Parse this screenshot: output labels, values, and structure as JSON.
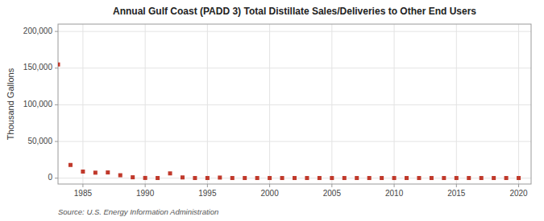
{
  "chart_data": {
    "type": "scatter",
    "title": "Annual Gulf Coast (PADD 3) Total Distillate Sales/Deliveries to Other End Users",
    "y_label": "Thousand Gallons",
    "source": "Source: U.S. Energy Information Administration",
    "color": "#c0392b",
    "marker": "square",
    "grid": true,
    "xlim": [
      1983,
      2021
    ],
    "ylim": [
      -8000,
      210000
    ],
    "xticks": [
      1985,
      1990,
      1995,
      2000,
      2005,
      2010,
      2015,
      2020
    ],
    "yticks": [
      0,
      {
        "value": 50000,
        "label": "50,000"
      },
      {
        "value": 100000,
        "label": "100,000"
      },
      {
        "value": 150000,
        "label": "150,000"
      },
      {
        "value": 200000,
        "label": "200,000"
      }
    ],
    "x": [
      1983,
      1984,
      1985,
      1986,
      1987,
      1988,
      1989,
      1990,
      1991,
      1992,
      1993,
      1994,
      1995,
      1996,
      1997,
      1998,
      1999,
      2000,
      2001,
      2002,
      2003,
      2004,
      2005,
      2006,
      2007,
      2008,
      2009,
      2010,
      2011,
      2012,
      2013,
      2014,
      2015,
      2016,
      2017,
      2018,
      2019,
      2020
    ],
    "values": [
      155000,
      18000,
      9000,
      7500,
      7800,
      4000,
      1200,
      300,
      200,
      6500,
      1000,
      200,
      200,
      800,
      200,
      200,
      200,
      200,
      200,
      200,
      200,
      200,
      200,
      200,
      200,
      200,
      200,
      200,
      200,
      200,
      200,
      200,
      200,
      200,
      200,
      200,
      200,
      200
    ]
  }
}
